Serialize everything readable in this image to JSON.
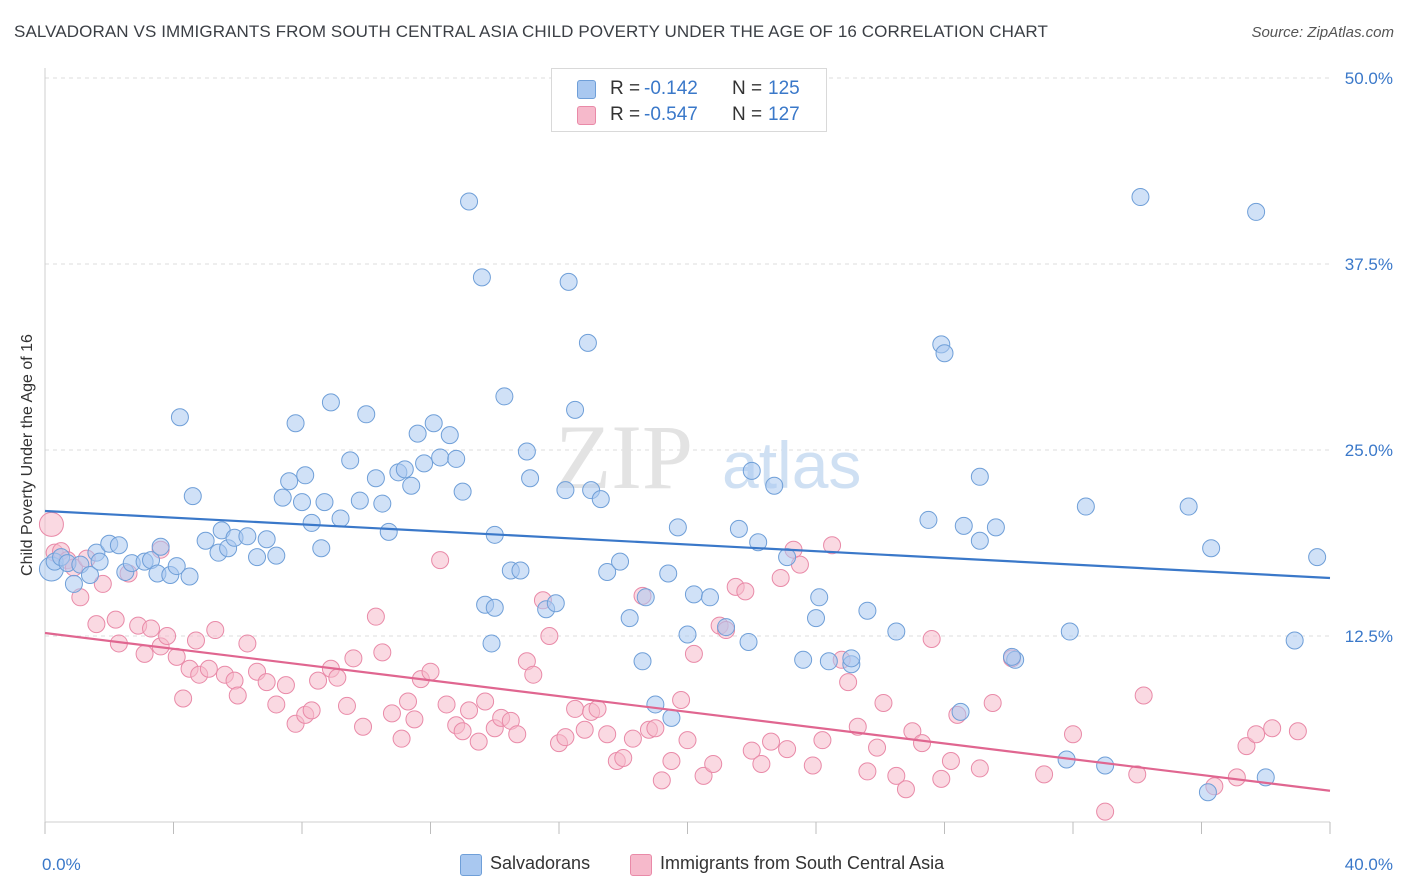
{
  "header": {
    "title": "SALVADORAN VS IMMIGRANTS FROM SOUTH CENTRAL ASIA CHILD POVERTY UNDER THE AGE OF 16 CORRELATION CHART",
    "source": "Source: ZipAtlas.com"
  },
  "watermark": {
    "zip": "ZIP",
    "atlas": "atlas"
  },
  "legend": {
    "r_label": "R =",
    "n_label": "N =",
    "series": [
      {
        "r": "-0.142",
        "n": "125"
      },
      {
        "r": "-0.547",
        "n": "127"
      }
    ]
  },
  "bottom_legend": {
    "items": [
      "Salvadorans",
      "Immigrants from South Central Asia"
    ]
  },
  "colors": {
    "blue_fill": "#a9c8f0",
    "blue_stroke": "#6f9fd8",
    "blue_line": "#3a78c9",
    "pink_fill": "#f6b9cb",
    "pink_stroke": "#e98aa8",
    "pink_line": "#e06690",
    "axis_value": "#3a78c9",
    "grid": "#dcdcdc"
  },
  "chart_data": {
    "type": "scatter",
    "title": "SALVADORAN VS IMMIGRANTS FROM SOUTH CENTRAL ASIA CHILD POVERTY UNDER THE AGE OF 16 CORRELATION CHART",
    "xlabel": "",
    "ylabel": "Child Poverty Under the Age of 16",
    "xlim": [
      0,
      40
    ],
    "ylim": [
      0,
      50
    ],
    "x_tick_labels": [
      "0.0%",
      "40.0%"
    ],
    "y_ticks": [
      12.5,
      25.0,
      37.5,
      50.0
    ],
    "y_tick_labels": [
      "12.5%",
      "25.0%",
      "37.5%",
      "50.0%"
    ],
    "grid": "horizontal dashed",
    "legend_placement": "top-center",
    "series": [
      {
        "name": "Salvadorans",
        "r": -0.142,
        "n": 125,
        "trend": {
          "x": [
            0,
            40
          ],
          "y": [
            20.9,
            16.4
          ]
        },
        "points": [
          [
            0.2,
            17.0
          ],
          [
            0.3,
            17.5
          ],
          [
            0.5,
            17.8
          ],
          [
            0.7,
            17.4
          ],
          [
            0.9,
            16.0
          ],
          [
            1.1,
            17.3
          ],
          [
            1.4,
            16.6
          ],
          [
            1.6,
            18.1
          ],
          [
            1.7,
            17.5
          ],
          [
            2.0,
            18.7
          ],
          [
            2.3,
            18.6
          ],
          [
            2.5,
            16.8
          ],
          [
            2.7,
            17.4
          ],
          [
            3.1,
            17.5
          ],
          [
            3.3,
            17.6
          ],
          [
            3.5,
            16.7
          ],
          [
            3.6,
            18.5
          ],
          [
            3.9,
            16.6
          ],
          [
            4.1,
            17.2
          ],
          [
            4.5,
            16.5
          ],
          [
            4.6,
            21.9
          ],
          [
            5.0,
            18.9
          ],
          [
            5.4,
            18.1
          ],
          [
            5.5,
            19.6
          ],
          [
            5.7,
            18.4
          ],
          [
            5.9,
            19.1
          ],
          [
            6.3,
            19.2
          ],
          [
            6.6,
            17.8
          ],
          [
            6.9,
            19.0
          ],
          [
            7.2,
            17.9
          ],
          [
            4.2,
            27.2
          ],
          [
            7.4,
            21.8
          ],
          [
            7.6,
            22.9
          ],
          [
            7.8,
            26.8
          ],
          [
            8.0,
            21.5
          ],
          [
            8.1,
            23.3
          ],
          [
            8.3,
            20.1
          ],
          [
            8.6,
            18.4
          ],
          [
            8.7,
            21.5
          ],
          [
            8.9,
            28.2
          ],
          [
            9.2,
            20.4
          ],
          [
            9.5,
            24.3
          ],
          [
            9.8,
            21.6
          ],
          [
            10.0,
            27.4
          ],
          [
            10.3,
            23.1
          ],
          [
            10.5,
            21.4
          ],
          [
            10.7,
            19.5
          ],
          [
            11.0,
            23.5
          ],
          [
            11.2,
            23.7
          ],
          [
            11.4,
            22.6
          ],
          [
            11.6,
            26.1
          ],
          [
            11.8,
            24.1
          ],
          [
            12.1,
            26.8
          ],
          [
            12.3,
            24.5
          ],
          [
            12.6,
            26.0
          ],
          [
            12.8,
            24.4
          ],
          [
            13.0,
            22.2
          ],
          [
            13.2,
            41.7
          ],
          [
            13.6,
            36.6
          ],
          [
            13.7,
            14.6
          ],
          [
            13.9,
            12.0
          ],
          [
            14.0,
            19.3
          ],
          [
            14.3,
            28.6
          ],
          [
            14.5,
            16.9
          ],
          [
            14.8,
            16.9
          ],
          [
            15.0,
            24.9
          ],
          [
            15.1,
            23.1
          ],
          [
            15.6,
            14.3
          ],
          [
            15.9,
            14.7
          ],
          [
            16.2,
            22.3
          ],
          [
            16.3,
            36.3
          ],
          [
            16.5,
            27.7
          ],
          [
            16.9,
            32.2
          ],
          [
            17.0,
            22.3
          ],
          [
            17.3,
            21.7
          ],
          [
            17.5,
            16.8
          ],
          [
            17.9,
            17.5
          ],
          [
            18.2,
            13.7
          ],
          [
            18.6,
            10.8
          ],
          [
            18.7,
            15.1
          ],
          [
            19.0,
            7.9
          ],
          [
            19.4,
            16.7
          ],
          [
            19.5,
            7.0
          ],
          [
            19.7,
            19.8
          ],
          [
            20.0,
            12.6
          ],
          [
            20.2,
            15.3
          ],
          [
            20.7,
            15.1
          ],
          [
            21.2,
            13.1
          ],
          [
            21.6,
            19.7
          ],
          [
            21.9,
            12.1
          ],
          [
            22.7,
            22.6
          ],
          [
            22.0,
            23.6
          ],
          [
            22.2,
            18.8
          ],
          [
            23.1,
            17.8
          ],
          [
            23.6,
            10.9
          ],
          [
            24.0,
            13.7
          ],
          [
            24.1,
            15.1
          ],
          [
            24.4,
            10.8
          ],
          [
            25.1,
            10.6
          ],
          [
            25.1,
            11.0
          ],
          [
            25.6,
            14.2
          ],
          [
            27.9,
            32.1
          ],
          [
            27.5,
            20.3
          ],
          [
            28.6,
            19.9
          ],
          [
            28.0,
            31.5
          ],
          [
            29.1,
            18.9
          ],
          [
            29.1,
            23.2
          ],
          [
            29.6,
            19.8
          ],
          [
            30.2,
            10.9
          ],
          [
            31.8,
            4.2
          ],
          [
            31.9,
            12.8
          ],
          [
            32.4,
            21.2
          ],
          [
            33.0,
            3.8
          ],
          [
            34.1,
            42.0
          ],
          [
            35.6,
            21.2
          ],
          [
            36.3,
            18.4
          ],
          [
            38.9,
            12.2
          ],
          [
            39.6,
            17.8
          ],
          [
            37.7,
            41.0
          ],
          [
            36.2,
            2.0
          ],
          [
            38.0,
            3.0
          ],
          [
            30.1,
            11.1
          ],
          [
            26.5,
            12.8
          ],
          [
            28.5,
            7.4
          ],
          [
            14.0,
            14.4
          ]
        ]
      },
      {
        "name": "Immigrants from South Central Asia",
        "r": -0.547,
        "n": 127,
        "trend": {
          "x": [
            0,
            40
          ],
          "y": [
            12.7,
            2.1
          ]
        },
        "points": [
          [
            0.2,
            20.0
          ],
          [
            0.3,
            18.1
          ],
          [
            0.5,
            18.2
          ],
          [
            0.7,
            17.6
          ],
          [
            0.9,
            17.1
          ],
          [
            1.1,
            15.1
          ],
          [
            1.3,
            17.7
          ],
          [
            1.6,
            13.3
          ],
          [
            1.8,
            16.0
          ],
          [
            2.2,
            13.6
          ],
          [
            2.3,
            12.0
          ],
          [
            2.6,
            16.7
          ],
          [
            2.9,
            13.2
          ],
          [
            3.1,
            11.3
          ],
          [
            3.3,
            13.0
          ],
          [
            3.6,
            18.3
          ],
          [
            3.6,
            11.8
          ],
          [
            3.8,
            12.5
          ],
          [
            4.1,
            11.1
          ],
          [
            4.3,
            8.3
          ],
          [
            4.5,
            10.3
          ],
          [
            4.7,
            12.2
          ],
          [
            4.8,
            9.9
          ],
          [
            5.1,
            10.3
          ],
          [
            5.3,
            12.9
          ],
          [
            5.6,
            9.9
          ],
          [
            5.9,
            9.5
          ],
          [
            6.0,
            8.5
          ],
          [
            6.3,
            12.0
          ],
          [
            6.6,
            10.1
          ],
          [
            6.9,
            9.4
          ],
          [
            7.2,
            7.9
          ],
          [
            7.5,
            9.2
          ],
          [
            7.8,
            6.6
          ],
          [
            8.1,
            7.2
          ],
          [
            8.3,
            7.5
          ],
          [
            8.5,
            9.5
          ],
          [
            8.9,
            10.3
          ],
          [
            9.1,
            9.7
          ],
          [
            9.4,
            7.8
          ],
          [
            9.6,
            11.0
          ],
          [
            9.9,
            6.4
          ],
          [
            10.3,
            13.8
          ],
          [
            10.5,
            11.4
          ],
          [
            10.8,
            7.3
          ],
          [
            11.1,
            5.6
          ],
          [
            11.3,
            8.1
          ],
          [
            11.5,
            6.9
          ],
          [
            11.7,
            9.6
          ],
          [
            12.0,
            10.1
          ],
          [
            12.3,
            17.6
          ],
          [
            12.5,
            7.9
          ],
          [
            12.8,
            6.5
          ],
          [
            13.0,
            6.1
          ],
          [
            13.2,
            7.5
          ],
          [
            13.5,
            5.4
          ],
          [
            13.7,
            8.1
          ],
          [
            14.0,
            6.3
          ],
          [
            14.2,
            7.0
          ],
          [
            14.5,
            6.8
          ],
          [
            14.7,
            5.9
          ],
          [
            15.0,
            10.8
          ],
          [
            15.2,
            9.9
          ],
          [
            15.5,
            14.9
          ],
          [
            15.7,
            12.5
          ],
          [
            16.0,
            5.3
          ],
          [
            16.2,
            5.7
          ],
          [
            16.5,
            7.6
          ],
          [
            16.8,
            6.2
          ],
          [
            17.0,
            7.4
          ],
          [
            17.2,
            7.6
          ],
          [
            17.5,
            5.9
          ],
          [
            17.8,
            4.1
          ],
          [
            18.0,
            4.3
          ],
          [
            18.3,
            5.6
          ],
          [
            18.6,
            15.2
          ],
          [
            18.8,
            6.2
          ],
          [
            19.0,
            6.3
          ],
          [
            19.2,
            2.8
          ],
          [
            19.5,
            4.1
          ],
          [
            19.8,
            8.2
          ],
          [
            20.0,
            5.5
          ],
          [
            20.2,
            11.3
          ],
          [
            20.5,
            3.1
          ],
          [
            20.8,
            3.9
          ],
          [
            21.0,
            13.2
          ],
          [
            21.2,
            12.9
          ],
          [
            21.5,
            15.8
          ],
          [
            21.8,
            15.5
          ],
          [
            22.0,
            4.8
          ],
          [
            22.3,
            3.9
          ],
          [
            22.6,
            5.4
          ],
          [
            22.9,
            16.4
          ],
          [
            23.1,
            4.9
          ],
          [
            23.3,
            18.3
          ],
          [
            23.5,
            17.3
          ],
          [
            23.9,
            3.8
          ],
          [
            24.2,
            5.5
          ],
          [
            24.5,
            18.6
          ],
          [
            24.8,
            10.9
          ],
          [
            25.0,
            9.4
          ],
          [
            25.3,
            6.4
          ],
          [
            25.6,
            3.4
          ],
          [
            25.9,
            5.0
          ],
          [
            26.1,
            8.0
          ],
          [
            26.5,
            3.1
          ],
          [
            26.8,
            2.2
          ],
          [
            27.0,
            6.1
          ],
          [
            27.3,
            5.3
          ],
          [
            27.6,
            12.3
          ],
          [
            27.9,
            2.9
          ],
          [
            28.2,
            4.1
          ],
          [
            28.4,
            7.2
          ],
          [
            29.1,
            3.6
          ],
          [
            29.5,
            8.0
          ],
          [
            30.1,
            11.0
          ],
          [
            31.1,
            3.2
          ],
          [
            32.0,
            5.9
          ],
          [
            33.0,
            0.7
          ],
          [
            34.0,
            3.2
          ],
          [
            34.2,
            8.5
          ],
          [
            36.4,
            2.4
          ],
          [
            37.4,
            5.1
          ],
          [
            37.7,
            5.9
          ],
          [
            37.1,
            3.0
          ],
          [
            38.2,
            6.3
          ],
          [
            39.0,
            6.1
          ]
        ]
      }
    ]
  }
}
